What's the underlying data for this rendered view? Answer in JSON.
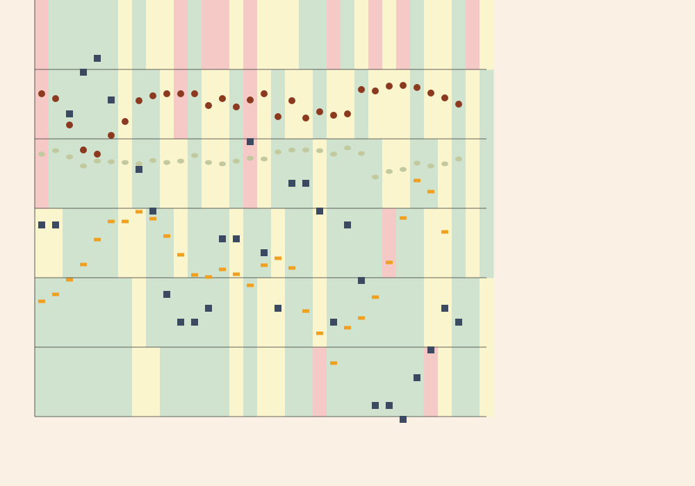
{
  "chart_data": {
    "type": "scatter",
    "title": "",
    "xlabel": "",
    "ylabel": "",
    "x": [
      1,
      2,
      3,
      4,
      5,
      6,
      7,
      8,
      9,
      10,
      11,
      12,
      13,
      14,
      15,
      16,
      17,
      18,
      19,
      20,
      21,
      22,
      23,
      24,
      25,
      26,
      27,
      28,
      29,
      30,
      31,
      32
    ],
    "xlim": [
      0.5,
      34.5
    ],
    "ylim": [
      0,
      6
    ],
    "grid": true,
    "colors": {
      "background": "#faf1e4",
      "band_green": "#cfe3cf",
      "band_yellow": "#faf5cd",
      "band_pink": "#f5c9c6",
      "axis": "#333333",
      "circles": "#8b3a1f",
      "squares": "#3b4a60",
      "ellipses": "#c2c99e",
      "dashes": "#f0a020"
    },
    "bands": {
      "states": [
        "green",
        "yellow",
        "pink"
      ],
      "rows": [
        [
          0,
          0,
          0,
          0,
          0,
          0,
          0,
          1,
          1,
          0,
          0,
          0,
          0,
          0,
          1,
          0,
          1,
          1,
          0,
          0,
          2,
          0,
          0,
          0,
          0,
          0,
          0,
          0,
          2,
          1,
          0,
          0,
          1
        ],
        [
          0,
          0,
          0,
          0,
          0,
          0,
          0,
          1,
          0,
          0,
          0,
          0,
          0,
          0,
          1,
          0,
          1,
          1,
          0,
          0,
          1,
          0,
          0,
          0,
          0,
          0,
          0,
          0,
          1,
          1,
          0,
          0,
          1
        ],
        [
          1,
          1,
          0,
          0,
          0,
          0,
          1,
          1,
          0,
          0,
          1,
          0,
          0,
          0,
          1,
          0,
          0,
          1,
          0,
          0,
          1,
          0,
          0,
          0,
          0,
          2,
          0,
          0,
          1,
          1,
          0,
          1,
          0
        ],
        [
          2,
          0,
          0,
          0,
          0,
          0,
          1,
          0,
          0,
          1,
          1,
          0,
          1,
          1,
          0,
          2,
          1,
          0,
          0,
          0,
          1,
          0,
          0,
          0,
          0,
          1,
          1,
          0,
          0,
          1,
          0,
          1,
          0
        ],
        [
          2,
          0,
          0,
          0,
          0,
          0,
          1,
          0,
          0,
          1,
          2,
          0,
          1,
          1,
          0,
          2,
          1,
          0,
          1,
          1,
          0,
          1,
          1,
          0,
          1,
          1,
          1,
          0,
          1,
          1,
          0,
          1,
          0
        ],
        [
          2,
          0,
          0,
          0,
          0,
          0,
          1,
          0,
          1,
          1,
          2,
          0,
          2,
          2,
          1,
          2,
          1,
          1,
          1,
          0,
          0,
          2,
          0,
          1,
          2,
          1,
          2,
          0,
          1,
          1,
          0,
          2,
          1
        ]
      ]
    },
    "series": [
      {
        "marker": "circle",
        "y": [
          4.65,
          4.58,
          4.2,
          3.84,
          3.78,
          4.05,
          4.25,
          4.55,
          4.62,
          4.65,
          4.65,
          4.65,
          4.48,
          4.58,
          4.46,
          4.56,
          4.65,
          4.32,
          4.55,
          4.3,
          4.39,
          4.34,
          4.36,
          4.71,
          4.69,
          4.76,
          4.77,
          4.74,
          4.66,
          4.59,
          4.5,
          null
        ]
      },
      {
        "marker": "square",
        "y": [
          2.76,
          2.76,
          4.36,
          4.96,
          5.16,
          4.56,
          null,
          3.56,
          2.96,
          1.76,
          1.36,
          1.36,
          1.56,
          2.56,
          2.56,
          3.96,
          2.36,
          1.56,
          3.36,
          3.36,
          2.96,
          1.36,
          2.76,
          1.96,
          0.16,
          0.16,
          -0.04,
          0.56,
          0.96,
          1.56,
          1.36,
          null
        ]
      },
      {
        "marker": "ellipse",
        "y": [
          3.78,
          3.83,
          3.74,
          3.61,
          3.68,
          3.67,
          3.66,
          3.64,
          3.69,
          3.66,
          3.68,
          3.76,
          3.66,
          3.64,
          3.68,
          3.72,
          3.71,
          3.81,
          3.84,
          3.84,
          3.83,
          3.78,
          3.87,
          3.79,
          3.45,
          3.53,
          3.56,
          3.65,
          3.61,
          3.64,
          3.71,
          null
        ]
      },
      {
        "marker": "dash",
        "y": [
          1.66,
          1.76,
          1.97,
          2.19,
          2.55,
          2.81,
          2.81,
          2.95,
          2.85,
          2.6,
          2.33,
          2.04,
          2.01,
          2.12,
          2.05,
          1.89,
          2.18,
          2.28,
          2.14,
          1.52,
          1.2,
          0.77,
          1.28,
          1.42,
          1.72,
          2.22,
          2.86,
          3.4,
          3.24,
          2.66,
          null,
          null
        ]
      }
    ]
  }
}
